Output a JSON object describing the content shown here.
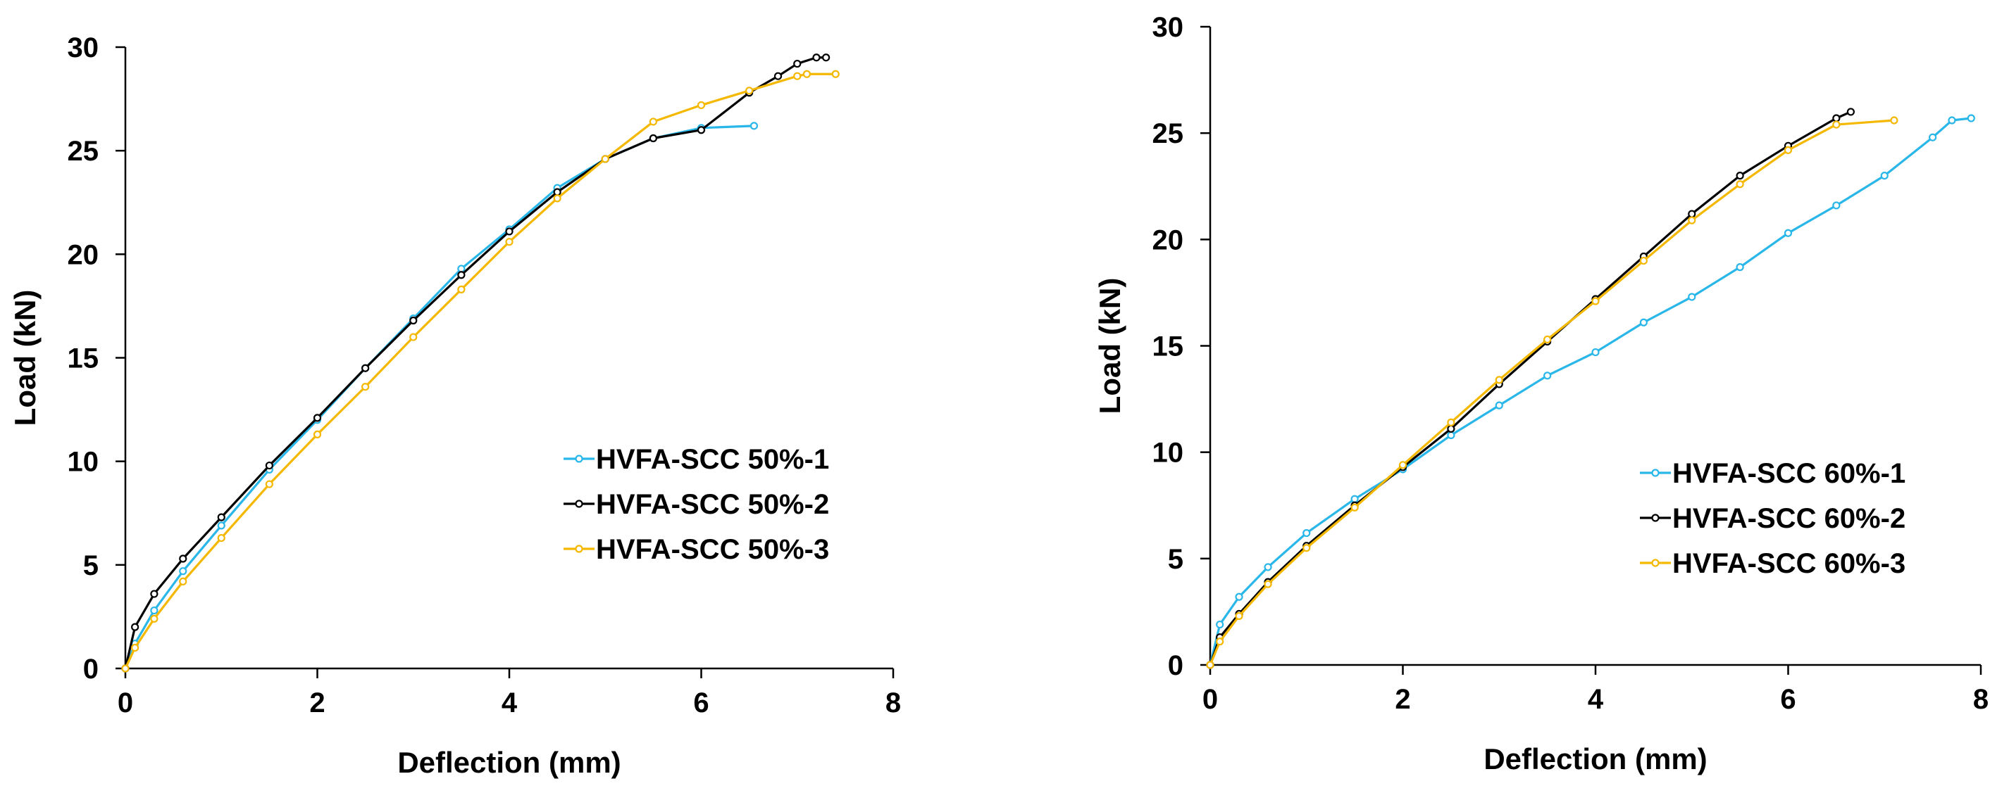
{
  "chart_data": [
    {
      "type": "line",
      "title": "",
      "xlabel": "Deflection (mm)",
      "ylabel": "Load (kN)",
      "xlim": [
        0,
        8
      ],
      "ylim": [
        0,
        30
      ],
      "xticks": [
        0,
        2,
        4,
        6,
        8
      ],
      "yticks": [
        0,
        5,
        10,
        15,
        20,
        25,
        30
      ],
      "xtick_labels": [
        "0",
        "2",
        "4",
        "6",
        "8"
      ],
      "ytick_labels": [
        "0",
        "5",
        "10",
        "15",
        "20",
        "25",
        "30"
      ],
      "grid": false,
      "legend_position": "center-right",
      "series": [
        {
          "name": "HVFA-SCC 50%-1",
          "color": "#29B6E8",
          "x": [
            0,
            0.1,
            0.3,
            0.6,
            1,
            1.5,
            2,
            2.5,
            3,
            3.5,
            4,
            4.5,
            5,
            5.5,
            6,
            6.55
          ],
          "y": [
            0,
            1.2,
            2.8,
            4.7,
            6.9,
            9.6,
            12.0,
            14.5,
            16.9,
            19.3,
            21.2,
            23.2,
            24.6,
            25.6,
            26.1,
            26.2
          ]
        },
        {
          "name": "HVFA-SCC 50%-2",
          "color": "#000000",
          "x": [
            0,
            0.1,
            0.3,
            0.6,
            1,
            1.5,
            2,
            2.5,
            3,
            3.5,
            4,
            4.5,
            5,
            5.5,
            6,
            6.5,
            6.8,
            7.0,
            7.2,
            7.3
          ],
          "y": [
            0,
            2.0,
            3.6,
            5.3,
            7.3,
            9.8,
            12.1,
            14.5,
            16.8,
            19.0,
            21.1,
            23.0,
            24.6,
            25.6,
            26.0,
            27.8,
            28.6,
            29.2,
            29.5,
            29.5
          ]
        },
        {
          "name": "HVFA-SCC 50%-3",
          "color": "#F5B800",
          "x": [
            0,
            0.1,
            0.3,
            0.6,
            1,
            1.5,
            2,
            2.5,
            3,
            3.5,
            4,
            4.5,
            5,
            5.5,
            6,
            6.5,
            7.0,
            7.1,
            7.4
          ],
          "y": [
            0,
            1.0,
            2.4,
            4.2,
            6.3,
            8.9,
            11.3,
            13.6,
            16.0,
            18.3,
            20.6,
            22.7,
            24.6,
            26.4,
            27.2,
            27.9,
            28.6,
            28.7,
            28.7
          ]
        }
      ]
    },
    {
      "type": "line",
      "title": "",
      "xlabel": "Deflection (mm)",
      "ylabel": "Load (kN)",
      "xlim": [
        0,
        8
      ],
      "ylim": [
        0,
        30
      ],
      "xticks": [
        0,
        2,
        4,
        6,
        8
      ],
      "yticks": [
        0,
        5,
        10,
        15,
        20,
        25,
        30
      ],
      "xtick_labels": [
        "0",
        "2",
        "4",
        "6",
        "8"
      ],
      "ytick_labels": [
        "0",
        "5",
        "10",
        "15",
        "20",
        "25",
        "30"
      ],
      "grid": false,
      "legend_position": "center-right",
      "series": [
        {
          "name": "HVFA-SCC 60%-1",
          "color": "#29B6E8",
          "x": [
            0,
            0.1,
            0.3,
            0.6,
            1,
            1.5,
            2,
            2.5,
            3,
            3.5,
            4,
            4.5,
            5,
            5.5,
            6,
            6.5,
            7,
            7.5,
            7.7,
            7.9
          ],
          "y": [
            0,
            1.9,
            3.2,
            4.6,
            6.2,
            7.8,
            9.2,
            10.8,
            12.2,
            13.6,
            14.7,
            16.1,
            17.3,
            18.7,
            20.3,
            21.6,
            23.0,
            24.8,
            25.6,
            25.7
          ]
        },
        {
          "name": "HVFA-SCC 60%-2",
          "color": "#000000",
          "x": [
            0,
            0.1,
            0.3,
            0.6,
            1,
            1.5,
            2,
            2.5,
            3,
            3.5,
            4,
            4.5,
            5,
            5.5,
            6,
            6.5,
            6.65
          ],
          "y": [
            0,
            1.3,
            2.4,
            3.9,
            5.6,
            7.5,
            9.3,
            11.1,
            13.2,
            15.2,
            17.2,
            19.2,
            21.2,
            23.0,
            24.4,
            25.7,
            26.0
          ]
        },
        {
          "name": "HVFA-SCC 60%-3",
          "color": "#F5B800",
          "x": [
            0,
            0.1,
            0.3,
            0.6,
            1,
            1.5,
            2,
            2.5,
            3,
            3.5,
            4,
            4.5,
            5,
            5.5,
            6,
            6.5,
            7.1
          ],
          "y": [
            0,
            1.1,
            2.3,
            3.8,
            5.5,
            7.4,
            9.4,
            11.4,
            13.4,
            15.3,
            17.1,
            19.0,
            20.9,
            22.6,
            24.2,
            25.4,
            25.6
          ]
        }
      ]
    }
  ]
}
